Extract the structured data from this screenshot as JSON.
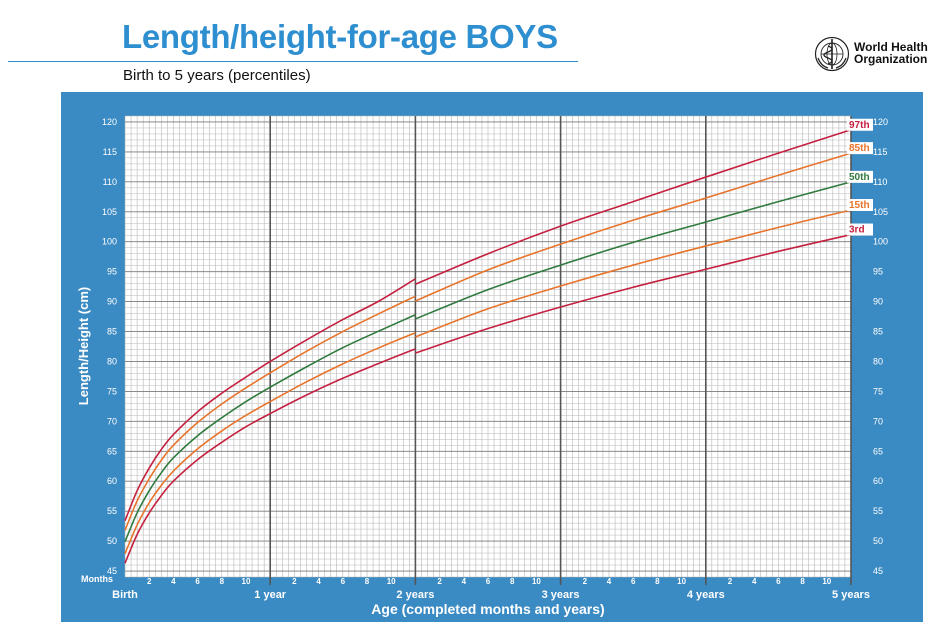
{
  "header": {
    "title": "Length/height-for-age BOYS",
    "subtitle": "Birth to 5 years (percentiles)",
    "org_line1": "World Health",
    "org_line2": "Organization"
  },
  "colors": {
    "title_blue": "#2e8fd0",
    "panel_blue": "#3a8ac3",
    "p3": "#c5203f",
    "p15": "#e8742b",
    "p50": "#2f7a3d",
    "p85": "#e8742b",
    "p97": "#c5203f"
  },
  "chart_data": {
    "type": "line",
    "title": "Length/height-for-age BOYS",
    "subtitle": "Birth to 5 years (percentiles)",
    "xlabel": "Age (completed months and years)",
    "ylabel": "Length/Height (cm)",
    "xlim": [
      0,
      60
    ],
    "ylim": [
      44,
      121
    ],
    "y_ticks": [
      45,
      50,
      55,
      60,
      65,
      70,
      75,
      80,
      85,
      90,
      95,
      100,
      105,
      110,
      115,
      120
    ],
    "months_label": "Months",
    "month_ticks": [
      2,
      4,
      6,
      8,
      10
    ],
    "year_labels": [
      {
        "month": 0,
        "label": "Birth"
      },
      {
        "month": 12,
        "label": "1 year"
      },
      {
        "month": 24,
        "label": "2 years"
      },
      {
        "month": 36,
        "label": "3 years"
      },
      {
        "month": 48,
        "label": "4 years"
      },
      {
        "month": 60,
        "label": "5 years"
      }
    ],
    "grid": true,
    "legend": "right-end labels",
    "x": [
      0,
      1,
      2,
      3,
      4,
      6,
      8,
      10,
      12,
      15,
      18,
      21,
      24,
      30,
      36,
      42,
      48,
      54,
      60
    ],
    "series": [
      {
        "name": "3rd",
        "color_key": "p3",
        "values": [
          46.3,
          51.1,
          54.7,
          57.6,
          60.0,
          63.6,
          66.5,
          69.1,
          71.3,
          74.4,
          77.2,
          79.7,
          82.1,
          85.5,
          89.1,
          92.4,
          95.4,
          98.4,
          101.2
        ],
        "values_after_break": 81.4
      },
      {
        "name": "15th",
        "color_key": "p15",
        "values": [
          47.9,
          52.7,
          56.4,
          59.3,
          61.7,
          65.4,
          68.4,
          71.0,
          73.3,
          76.6,
          79.6,
          82.3,
          84.8,
          88.8,
          92.6,
          96.1,
          99.3,
          102.4,
          105.3
        ],
        "values_after_break": 84.1
      },
      {
        "name": "50th",
        "color_key": "p50",
        "values": [
          49.9,
          54.7,
          58.4,
          61.4,
          63.9,
          67.6,
          70.6,
          73.3,
          75.7,
          79.1,
          82.3,
          85.1,
          87.8,
          92.0,
          96.1,
          99.9,
          103.3,
          106.7,
          110.0
        ],
        "values_after_break": 87.1
      },
      {
        "name": "85th",
        "color_key": "p85",
        "values": [
          51.8,
          56.7,
          60.4,
          63.5,
          66.0,
          69.8,
          72.9,
          75.6,
          78.1,
          81.7,
          85.0,
          88.0,
          90.9,
          95.3,
          99.6,
          103.6,
          107.3,
          111.1,
          114.8
        ],
        "values_after_break": 90.1
      },
      {
        "name": "97th",
        "color_key": "p97",
        "values": [
          53.4,
          58.4,
          62.2,
          65.3,
          67.8,
          71.6,
          74.7,
          77.4,
          80.0,
          83.6,
          87.0,
          90.1,
          93.8,
          98.0,
          102.6,
          106.7,
          110.8,
          114.8,
          118.7
        ],
        "values_after_break": 92.9
      }
    ]
  }
}
